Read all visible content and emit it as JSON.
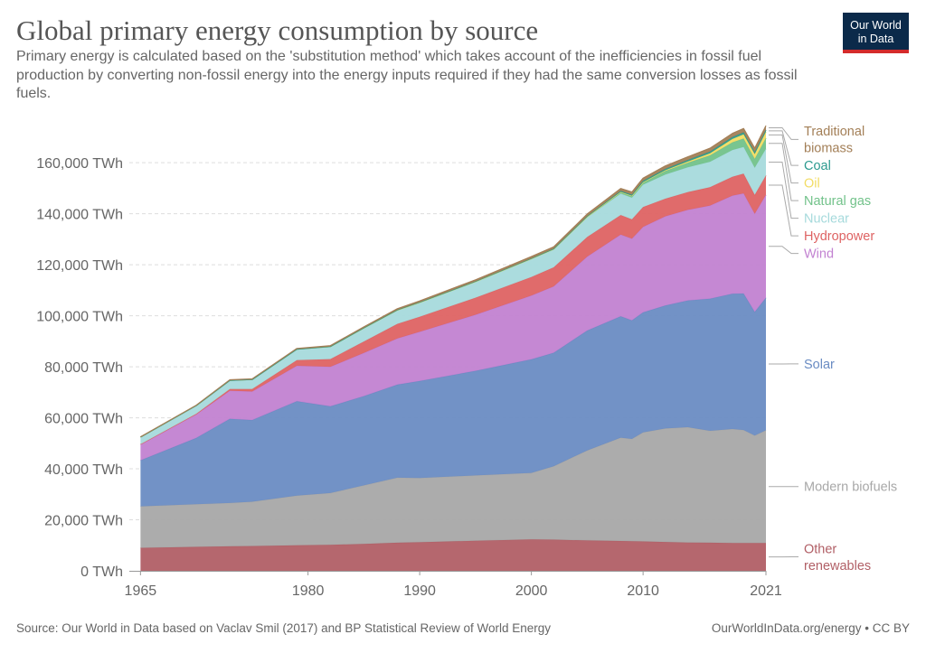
{
  "title": "Global primary energy consumption by source",
  "subtitle": "Primary energy is calculated based on the 'substitution method' which takes account of the inefficiencies in fossil fuel production by converting non-fossil energy into the energy inputs required if they had the same conversion losses as fossil fuels.",
  "logo": {
    "line1": "Our World",
    "line2": "in Data"
  },
  "source": "Source: Our World in Data based on Vaclav Smil (2017) and BP Statistical Review of World Energy",
  "credit": "OurWorldInData.org/energy • CC BY",
  "chart_data": {
    "type": "area",
    "stacked": true,
    "x": [
      1965,
      1970,
      1973,
      1975,
      1979,
      1982,
      1985,
      1988,
      1990,
      1995,
      2000,
      2002,
      2005,
      2008,
      2009,
      2010,
      2012,
      2014,
      2016,
      2018,
      2019,
      2020,
      2021
    ],
    "xticks": [
      "1965",
      "1980",
      "1990",
      "2000",
      "2010",
      "2021"
    ],
    "xtick_values": [
      1965,
      1980,
      1990,
      2000,
      2010,
      2021
    ],
    "yticks": [
      "0 TWh",
      "20,000 TWh",
      "40,000 TWh",
      "60,000 TWh",
      "80,000 TWh",
      "100,000 TWh",
      "120,000 TWh",
      "140,000 TWh",
      "160,000 TWh"
    ],
    "ytick_values": [
      0,
      20000,
      40000,
      60000,
      80000,
      100000,
      120000,
      140000,
      160000
    ],
    "ylim": [
      0,
      176000
    ],
    "xlim": [
      1964,
      2021
    ],
    "grid": true,
    "legend": "right, labels at series ends",
    "series": [
      {
        "name": "Traditional biomass",
        "color": "#b15f66",
        "values": [
          9000,
          9400,
          9600,
          9700,
          10000,
          10200,
          10500,
          11000,
          11200,
          11800,
          12300,
          12200,
          11900,
          11700,
          11600,
          11500,
          11300,
          11100,
          11000,
          10900,
          10900,
          10900,
          10900
        ]
      },
      {
        "name": "Coal",
        "color": "#a8a8a8",
        "values": [
          16300,
          16700,
          17000,
          17400,
          19500,
          20300,
          23000,
          25500,
          25200,
          25600,
          26100,
          28800,
          35300,
          40500,
          40100,
          42800,
          44500,
          45200,
          43900,
          44700,
          44300,
          42100,
          44200
        ]
      },
      {
        "name": "Oil",
        "color": "#6a8cc3",
        "values": [
          18000,
          26000,
          33000,
          32000,
          37000,
          34000,
          35000,
          36500,
          38000,
          41000,
          44500,
          44500,
          47000,
          47600,
          46500,
          47000,
          48200,
          49700,
          51800,
          53000,
          53500,
          48500,
          52000
        ]
      },
      {
        "name": "Natural gas",
        "color": "#c282d1",
        "values": [
          6200,
          9200,
          11000,
          11200,
          13900,
          15500,
          16900,
          18100,
          19300,
          22000,
          25000,
          26000,
          29000,
          32000,
          32000,
          33500,
          35000,
          35500,
          36500,
          38500,
          39300,
          38500,
          40300
        ]
      },
      {
        "name": "Nuclear",
        "color": "#de6363",
        "values": [
          100,
          300,
          700,
          1000,
          2200,
          3000,
          4500,
          5700,
          5900,
          6700,
          7300,
          7500,
          7700,
          7700,
          7600,
          7800,
          6900,
          7000,
          7200,
          7400,
          7700,
          7400,
          7600
        ]
      },
      {
        "name": "Hydropower",
        "color": "#a6dadc",
        "values": [
          2800,
          3200,
          3400,
          3700,
          4300,
          4900,
          5300,
          5400,
          5600,
          6300,
          7100,
          7000,
          7700,
          8400,
          8500,
          8800,
          9500,
          9700,
          10000,
          10500,
          10500,
          10600,
          10500
        ]
      },
      {
        "name": "Wind",
        "color": "#72c28a",
        "values": [
          0,
          0,
          0,
          0,
          0,
          0,
          0,
          0,
          0,
          0,
          100,
          150,
          250,
          600,
          700,
          900,
          1400,
          1800,
          2500,
          3000,
          3300,
          3500,
          4200
        ]
      },
      {
        "name": "Solar",
        "color": "#f2dc63",
        "values": [
          0,
          0,
          0,
          0,
          0,
          0,
          0,
          0,
          0,
          0,
          0,
          0,
          20,
          40,
          60,
          90,
          250,
          450,
          800,
          1300,
          1600,
          1900,
          2400
        ]
      },
      {
        "name": "Modern biofuels",
        "color": "#2c9a8f",
        "values": [
          0,
          0,
          0,
          0,
          0,
          20,
          50,
          100,
          100,
          100,
          100,
          120,
          200,
          400,
          450,
          500,
          550,
          600,
          650,
          750,
          800,
          760,
          800
        ]
      },
      {
        "name": "Other renewables",
        "color": "#a37f57",
        "values": [
          100,
          150,
          200,
          250,
          300,
          350,
          400,
          450,
          500,
          600,
          700,
          750,
          850,
          950,
          1000,
          1050,
          1150,
          1250,
          1350,
          1450,
          1500,
          1550,
          1600
        ]
      }
    ],
    "label_lines": [
      [
        "Other",
        "renewables"
      ],
      [
        "Modern biofuels"
      ],
      [
        "Solar"
      ],
      [
        "Wind"
      ],
      [
        "Hydropower"
      ],
      [
        "Nuclear"
      ],
      [
        "Natural gas"
      ],
      [
        "Oil"
      ],
      [
        "Coal"
      ],
      [
        "Traditional",
        "biomass"
      ]
    ]
  }
}
